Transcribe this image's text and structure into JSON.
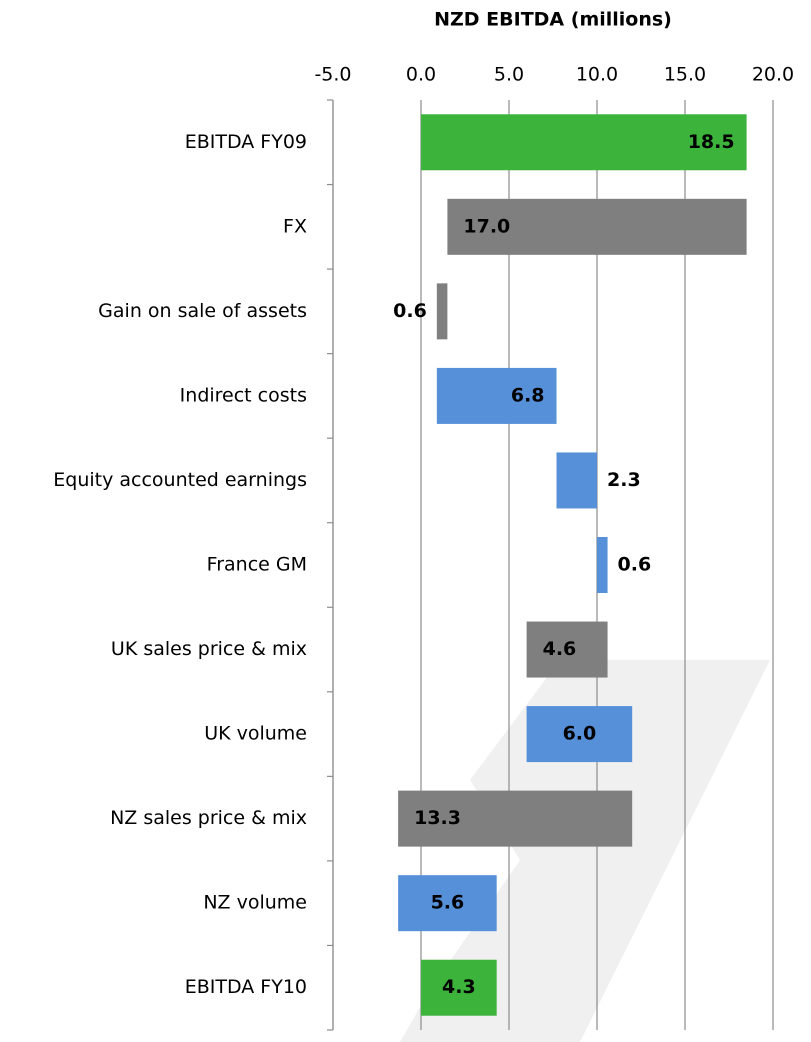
{
  "chart_data": {
    "type": "waterfall",
    "x_label": "NZD EBITDA (millions)",
    "categories": [
      "EBITDA FY09",
      "FX",
      "Gain on sale of assets",
      "Indirect costs",
      "Equity accounted earnings",
      "France GM",
      "UK sales price & mix",
      "UK volume",
      "NZ sales price & mix",
      "NZ volume",
      "EBITDA FY10"
    ],
    "values": [
      18.5,
      -17.0,
      -0.6,
      6.8,
      2.3,
      0.6,
      -4.6,
      6.0,
      -13.3,
      5.6,
      4.3
    ],
    "value_labels": [
      "18.5",
      "17.0",
      "0.6",
      "6.8",
      "2.3",
      "0.6",
      "4.6",
      "6.0",
      "13.3",
      "5.6",
      "4.3"
    ],
    "totals": [
      true,
      false,
      false,
      false,
      false,
      false,
      false,
      false,
      false,
      false,
      true
    ],
    "colors": {
      "total": "#3cb43c",
      "increase": "#5590d9",
      "decrease": "#7f7f7f"
    },
    "xlim": [
      -5,
      20
    ],
    "xticks": [
      {
        "value": -5,
        "label": "-5.0"
      },
      {
        "value": 0,
        "label": "0.0"
      },
      {
        "value": 5,
        "label": "5.0"
      },
      {
        "value": 10,
        "label": "10.0"
      },
      {
        "value": 15,
        "label": "15.0"
      },
      {
        "value": 20,
        "label": "20.0"
      }
    ],
    "grid": true
  }
}
